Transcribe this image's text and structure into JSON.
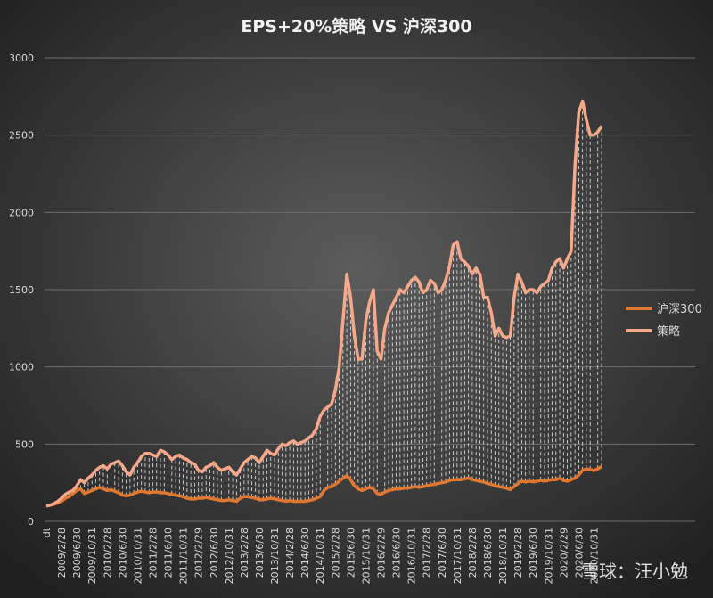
{
  "chart_data": {
    "type": "line",
    "title": "EPS+20%策略 VS 沪深300",
    "watermark": "雪球：汪小勉",
    "categories": [
      "dt",
      null,
      null,
      null,
      "2009/2/28",
      null,
      null,
      null,
      "2009/6/30",
      null,
      null,
      null,
      "2009/10/31",
      null,
      null,
      null,
      "2010/2/28",
      null,
      null,
      null,
      "2010/6/30",
      null,
      null,
      null,
      "2010/10/31",
      null,
      null,
      null,
      "2011/2/28",
      null,
      null,
      null,
      "2011/6/30",
      null,
      null,
      null,
      "2011/10/31",
      null,
      null,
      null,
      "2012/2/29",
      null,
      null,
      null,
      "2012/6/30",
      null,
      null,
      null,
      "2012/10/31",
      null,
      null,
      null,
      "2013/2/28",
      null,
      null,
      null,
      "2013/6/30",
      null,
      null,
      null,
      "2013/10/31",
      null,
      null,
      null,
      "2014/2/28",
      null,
      null,
      null,
      "2014/6/30",
      null,
      null,
      null,
      "2014/10/31",
      null,
      null,
      null,
      "2015/2/28",
      null,
      null,
      null,
      "2015/6/30",
      null,
      null,
      null,
      "2015/10/31",
      null,
      null,
      null,
      "2016/2/29",
      null,
      null,
      null,
      "2016/6/30",
      null,
      null,
      null,
      "2016/10/31",
      null,
      null,
      null,
      "2017/2/28",
      null,
      null,
      null,
      "2017/6/30",
      null,
      null,
      null,
      "2017/10/31",
      null,
      null,
      null,
      "2018/2/28",
      null,
      null,
      null,
      "2018/6/30",
      null,
      null,
      null,
      "2018/10/31",
      null,
      null,
      null,
      "2019/2/28",
      null,
      null,
      null,
      "2019/6/30",
      null,
      null,
      null,
      "2019/10/31",
      null,
      null,
      null,
      "2020/2/29",
      null,
      null,
      null,
      "2020/6/30",
      null,
      null,
      null,
      "2020/10/31",
      null,
      null
    ],
    "series": [
      {
        "name": "沪深300",
        "color": "#e2772f",
        "values": [
          100,
          105,
          110,
          120,
          130,
          150,
          160,
          180,
          200,
          210,
          180,
          190,
          200,
          210,
          220,
          210,
          200,
          205,
          195,
          185,
          170,
          165,
          170,
          180,
          190,
          195,
          190,
          185,
          190,
          190,
          185,
          185,
          180,
          175,
          170,
          165,
          160,
          150,
          145,
          145,
          150,
          150,
          155,
          150,
          145,
          140,
          135,
          135,
          140,
          135,
          130,
          150,
          160,
          160,
          155,
          150,
          140,
          140,
          145,
          150,
          145,
          140,
          135,
          130,
          135,
          130,
          130,
          130,
          130,
          135,
          140,
          150,
          160,
          200,
          220,
          225,
          240,
          260,
          280,
          295,
          270,
          230,
          210,
          200,
          210,
          220,
          210,
          180,
          175,
          190,
          200,
          205,
          210,
          210,
          215,
          215,
          220,
          225,
          220,
          225,
          230,
          235,
          240,
          245,
          250,
          255,
          265,
          270,
          270,
          270,
          275,
          280,
          270,
          265,
          260,
          255,
          245,
          240,
          230,
          225,
          220,
          215,
          205,
          225,
          245,
          260,
          255,
          260,
          255,
          260,
          265,
          260,
          265,
          270,
          270,
          280,
          265,
          260,
          270,
          280,
          300,
          330,
          340,
          335,
          330,
          340,
          355
        ]
      },
      {
        "name": "策略",
        "color": "#f6a98a",
        "values": [
          100,
          105,
          115,
          130,
          150,
          175,
          190,
          200,
          230,
          270,
          250,
          280,
          300,
          330,
          350,
          360,
          340,
          370,
          380,
          390,
          360,
          320,
          300,
          350,
          380,
          420,
          440,
          440,
          430,
          420,
          460,
          450,
          430,
          400,
          420,
          430,
          410,
          400,
          380,
          370,
          330,
          320,
          350,
          360,
          380,
          350,
          330,
          340,
          350,
          320,
          300,
          340,
          380,
          400,
          420,
          410,
          380,
          420,
          460,
          440,
          430,
          470,
          500,
          490,
          510,
          520,
          500,
          510,
          520,
          540,
          560,
          600,
          680,
          720,
          740,
          760,
          850,
          1000,
          1300,
          1600,
          1450,
          1200,
          1050,
          1050,
          1300,
          1420,
          1500,
          1100,
          1050,
          1250,
          1350,
          1400,
          1450,
          1500,
          1480,
          1520,
          1560,
          1580,
          1550,
          1480,
          1500,
          1560,
          1540,
          1480,
          1500,
          1560,
          1650,
          1790,
          1810,
          1700,
          1680,
          1650,
          1600,
          1640,
          1600,
          1450,
          1450,
          1350,
          1200,
          1250,
          1200,
          1190,
          1200,
          1450,
          1600,
          1550,
          1480,
          1500,
          1500,
          1480,
          1520,
          1540,
          1560,
          1640,
          1680,
          1700,
          1640,
          1700,
          1750,
          2300,
          2650,
          2720,
          2600,
          2500,
          2500,
          2520,
          2560
        ]
      }
    ],
    "ylim": [
      0,
      3000
    ],
    "yticks": [
      0,
      500,
      1000,
      1500,
      2000,
      2500,
      3000
    ],
    "grid": true,
    "legend": "right",
    "drop_lines": true
  }
}
